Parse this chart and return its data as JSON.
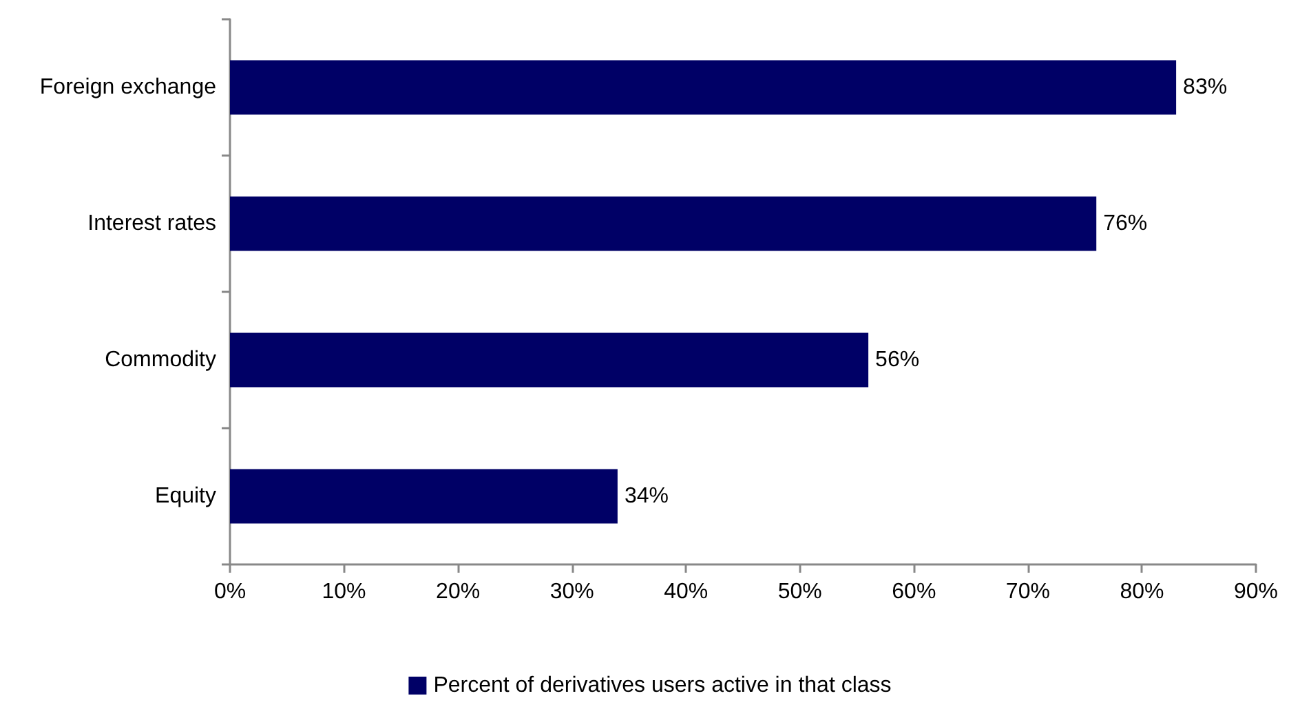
{
  "chart_data": {
    "type": "bar",
    "orientation": "horizontal",
    "categories": [
      "Foreign exchange",
      "Interest rates",
      "Commodity",
      "Equity"
    ],
    "series": [
      {
        "name": "Percent of derivatives users active in that class",
        "color": "#000066",
        "values": [
          83,
          76,
          56,
          34
        ],
        "value_labels": [
          "83%",
          "76%",
          "56%",
          "34%"
        ]
      }
    ],
    "xlim": [
      0,
      90
    ],
    "xticks": [
      {
        "value": 0,
        "label": "0%"
      },
      {
        "value": 10,
        "label": "10%"
      },
      {
        "value": 20,
        "label": "20%"
      },
      {
        "value": 30,
        "label": "30%"
      },
      {
        "value": 40,
        "label": "40%"
      },
      {
        "value": 50,
        "label": "50%"
      },
      {
        "value": 60,
        "label": "60%"
      },
      {
        "value": 70,
        "label": "70%"
      },
      {
        "value": 80,
        "label": "80%"
      },
      {
        "value": 90,
        "label": "90%"
      }
    ],
    "grid": false,
    "legend": "bottom"
  }
}
